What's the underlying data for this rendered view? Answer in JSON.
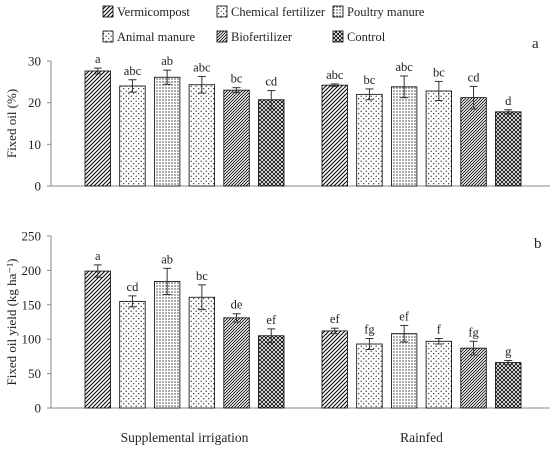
{
  "legend": [
    {
      "name": "Vermicompost",
      "pattern": "diag"
    },
    {
      "name": "Chemical fertilizer",
      "pattern": "dots-sparse"
    },
    {
      "name": "Poultry manure",
      "pattern": "dots-dense"
    },
    {
      "name": "Animal manure",
      "pattern": "dots-sparse"
    },
    {
      "name": "Biofertilizer",
      "pattern": "diag-fine"
    },
    {
      "name": "Control",
      "pattern": "cross"
    }
  ],
  "chart_data": [
    {
      "type": "bar",
      "panel_label": "a",
      "ylabel": "Fixed oil (%)",
      "ylim": [
        0,
        30
      ],
      "yticks": [
        0,
        10,
        20,
        30
      ],
      "groups": [
        "Supplemental irrigation",
        "Rainfed"
      ],
      "series": [
        {
          "name": "Vermicompost",
          "values": [
            27.6,
            24.2
          ],
          "errors": [
            0.7,
            0.3
          ],
          "letters": [
            "a",
            "abc"
          ]
        },
        {
          "name": "Chemical fertilizer",
          "values": [
            24.0,
            22.0
          ],
          "errors": [
            1.5,
            1.3
          ],
          "letters": [
            "abc",
            "bc"
          ]
        },
        {
          "name": "Poultry manure",
          "values": [
            26.1,
            23.8
          ],
          "errors": [
            1.7,
            2.6
          ],
          "letters": [
            "ab",
            "abc"
          ]
        },
        {
          "name": "Animal manure",
          "values": [
            24.3,
            22.8
          ],
          "errors": [
            2.0,
            2.3
          ],
          "letters": [
            "abc",
            "bc"
          ]
        },
        {
          "name": "Biofertilizer",
          "values": [
            23.0,
            21.2
          ],
          "errors": [
            0.6,
            2.7
          ],
          "letters": [
            "bc",
            "cd"
          ]
        },
        {
          "name": "Control",
          "values": [
            20.7,
            17.8
          ],
          "errors": [
            2.2,
            0.5
          ],
          "letters": [
            "cd",
            "d"
          ]
        }
      ]
    },
    {
      "type": "bar",
      "panel_label": "b",
      "ylabel": "Fixed oil yield (kg ha⁻¹)",
      "ylim": [
        0,
        250
      ],
      "yticks": [
        0,
        50,
        100,
        150,
        200,
        250
      ],
      "groups": [
        "Supplemental irrigation",
        "Rainfed"
      ],
      "series": [
        {
          "name": "Vermicompost",
          "values": [
            199,
            112
          ],
          "errors": [
            9,
            4
          ],
          "letters": [
            "a",
            "ef"
          ]
        },
        {
          "name": "Chemical fertilizer",
          "values": [
            155,
            93
          ],
          "errors": [
            8,
            8
          ],
          "letters": [
            "cd",
            "fg"
          ]
        },
        {
          "name": "Poultry manure",
          "values": [
            184,
            108
          ],
          "errors": [
            19,
            12
          ],
          "letters": [
            "ab",
            "ef"
          ]
        },
        {
          "name": "Animal manure",
          "values": [
            161,
            97
          ],
          "errors": [
            18,
            4
          ],
          "letters": [
            "bc",
            "f"
          ]
        },
        {
          "name": "Biofertilizer",
          "values": [
            131,
            87
          ],
          "errors": [
            6,
            10
          ],
          "letters": [
            "de",
            "fg"
          ]
        },
        {
          "name": "Control",
          "values": [
            105,
            66
          ],
          "errors": [
            10,
            3
          ],
          "letters": [
            "ef",
            "g"
          ]
        }
      ]
    }
  ],
  "colors": {
    "axis": "#8a8a8a",
    "bar_stroke": "#000000",
    "pattern": "#000000",
    "text": "#222222"
  }
}
